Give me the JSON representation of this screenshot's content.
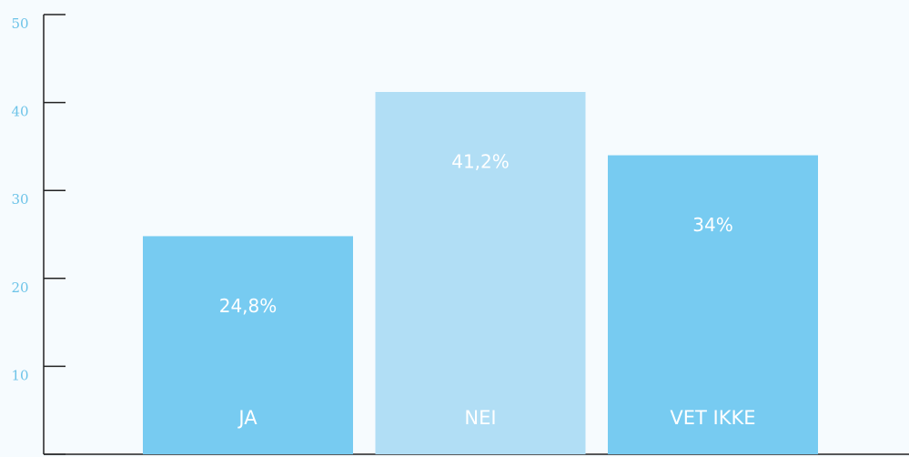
{
  "chart_data": {
    "type": "bar",
    "categories": [
      "JA",
      "NEI",
      "VET IKKE"
    ],
    "values": [
      24.8,
      41.2,
      34
    ],
    "value_labels": [
      "24,8%",
      "41,2%",
      "34%"
    ],
    "colors": [
      "#77cbf1",
      "#b1def5",
      "#77cbf1"
    ],
    "ylim": [
      0,
      50
    ],
    "yticks": [
      0,
      10,
      20,
      30,
      40,
      50
    ]
  }
}
